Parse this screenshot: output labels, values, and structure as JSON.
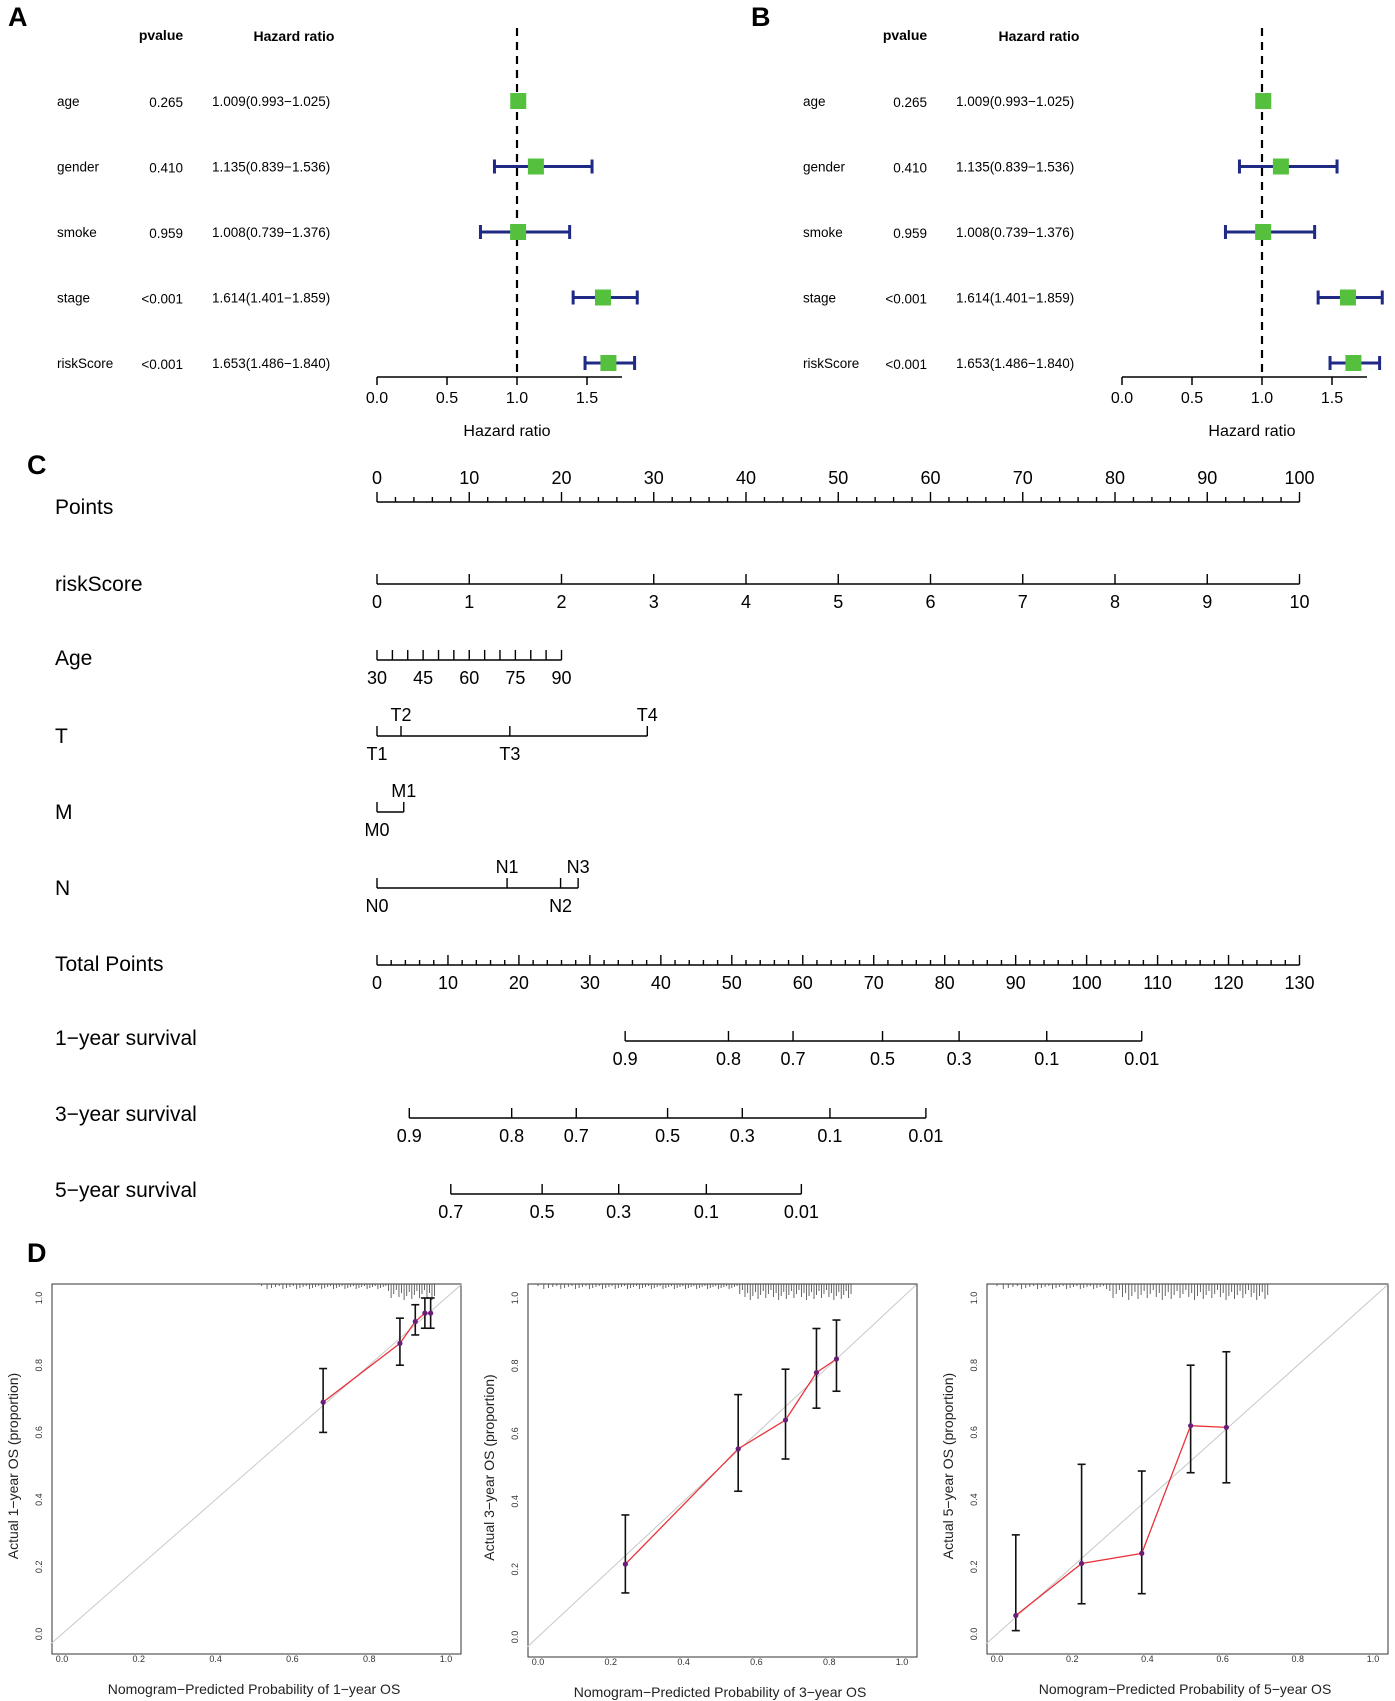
{
  "colors": {
    "forest_square": "#55c03d",
    "forest_ci": "#1f2a85",
    "calib_line": "#e8323a",
    "calib_point": "#6a1e78",
    "ideal_line": "#c8c8c8",
    "ink": "#000000"
  },
  "panels": {
    "A": "A",
    "B": "B",
    "C": "C",
    "D": "D"
  },
  "chart_data": [
    {
      "type": "forest",
      "panel": "A",
      "header": {
        "pvalue": "pvalue",
        "hr": "Hazard ratio"
      },
      "xlabel": "Hazard ratio",
      "xlim": [
        0,
        1.75
      ],
      "ticks": [
        0,
        0.5,
        1.0,
        1.5
      ],
      "tick_labels": [
        "0.0",
        "0.5",
        "1.0",
        "1.5"
      ],
      "reference": 1.0,
      "rows": [
        {
          "label": "age",
          "pvalue": "0.265",
          "hr_text": "1.009(0.993−1.025)",
          "hr": 1.009,
          "lo": 0.993,
          "hi": 1.025
        },
        {
          "label": "gender",
          "pvalue": "0.410",
          "hr_text": "1.135(0.839−1.536)",
          "hr": 1.135,
          "lo": 0.839,
          "hi": 1.536
        },
        {
          "label": "smoke",
          "pvalue": "0.959",
          "hr_text": "1.008(0.739−1.376)",
          "hr": 1.008,
          "lo": 0.739,
          "hi": 1.376
        },
        {
          "label": "stage",
          "pvalue": "<0.001",
          "hr_text": "1.614(1.401−1.859)",
          "hr": 1.614,
          "lo": 1.401,
          "hi": 1.859
        },
        {
          "label": "riskScore",
          "pvalue": "<0.001",
          "hr_text": "1.653(1.486−1.840)",
          "hr": 1.653,
          "lo": 1.486,
          "hi": 1.84
        }
      ]
    },
    {
      "type": "forest",
      "panel": "B",
      "header": {
        "pvalue": "pvalue",
        "hr": "Hazard ratio"
      },
      "xlabel": "Hazard ratio",
      "xlim": [
        0,
        1.75
      ],
      "ticks": [
        0,
        0.5,
        1.0,
        1.5
      ],
      "tick_labels": [
        "0.0",
        "0.5",
        "1.0",
        "1.5"
      ],
      "reference": 1.0,
      "rows": [
        {
          "label": "age",
          "pvalue": "0.265",
          "hr_text": "1.009(0.993−1.025)",
          "hr": 1.009,
          "lo": 0.993,
          "hi": 1.025
        },
        {
          "label": "gender",
          "pvalue": "0.410",
          "hr_text": "1.135(0.839−1.536)",
          "hr": 1.135,
          "lo": 0.839,
          "hi": 1.536
        },
        {
          "label": "smoke",
          "pvalue": "0.959",
          "hr_text": "1.008(0.739−1.376)",
          "hr": 1.008,
          "lo": 0.739,
          "hi": 1.376
        },
        {
          "label": "stage",
          "pvalue": "<0.001",
          "hr_text": "1.614(1.401−1.859)",
          "hr": 1.614,
          "lo": 1.401,
          "hi": 1.859
        },
        {
          "label": "riskScore",
          "pvalue": "<0.001",
          "hr_text": "1.653(1.486−1.840)",
          "hr": 1.653,
          "lo": 1.486,
          "hi": 1.84
        }
      ]
    },
    {
      "type": "nomogram",
      "panel": "C",
      "points_scale": {
        "min": 0,
        "max": 100
      },
      "rows": [
        {
          "label": "Points",
          "kind": "scale",
          "start": 0,
          "end": 100,
          "major": [
            0,
            10,
            20,
            30,
            40,
            50,
            60,
            70,
            80,
            90,
            100
          ],
          "minor_step": 2,
          "labels_side": "top"
        },
        {
          "label": "riskScore",
          "kind": "scale",
          "start": 0,
          "end": 100,
          "ticks": [
            {
              "t": "0",
              "p": 0
            },
            {
              "t": "1",
              "p": 10
            },
            {
              "t": "2",
              "p": 20
            },
            {
              "t": "3",
              "p": 30
            },
            {
              "t": "4",
              "p": 40
            },
            {
              "t": "5",
              "p": 50
            },
            {
              "t": "6",
              "p": 60
            },
            {
              "t": "7",
              "p": 70
            },
            {
              "t": "8",
              "p": 80
            },
            {
              "t": "9",
              "p": 90
            },
            {
              "t": "10",
              "p": 100
            }
          ]
        },
        {
          "label": "Age",
          "kind": "scale",
          "start": 0,
          "end": 20,
          "ticks": [
            {
              "t": "30",
              "p": 0
            },
            {
              "t": "",
              "p": 1.67
            },
            {
              "t": "",
              "p": 3.33
            },
            {
              "t": "45",
              "p": 5
            },
            {
              "t": "",
              "p": 6.67
            },
            {
              "t": "",
              "p": 8.33
            },
            {
              "t": "60",
              "p": 10
            },
            {
              "t": "",
              "p": 11.67
            },
            {
              "t": "",
              "p": 13.33
            },
            {
              "t": "75",
              "p": 15
            },
            {
              "t": "",
              "p": 16.67
            },
            {
              "t": "",
              "p": 18.33
            },
            {
              "t": "90",
              "p": 20
            }
          ]
        },
        {
          "label": "T",
          "kind": "categorical",
          "start": 0,
          "end": 29.3,
          "ticks": [
            {
              "t": "T1",
              "p": 0,
              "side": "bottom"
            },
            {
              "t": "T2",
              "p": 2.6,
              "side": "top"
            },
            {
              "t": "T3",
              "p": 14.4,
              "side": "bottom"
            },
            {
              "t": "T4",
              "p": 29.3,
              "side": "top"
            }
          ]
        },
        {
          "label": "M",
          "kind": "categorical",
          "start": 0,
          "end": 2.9,
          "ticks": [
            {
              "t": "M0",
              "p": 0,
              "side": "bottom"
            },
            {
              "t": "M1",
              "p": 2.9,
              "side": "top"
            }
          ]
        },
        {
          "label": "N",
          "kind": "categorical",
          "start": 0,
          "end": 21.8,
          "ticks": [
            {
              "t": "N0",
              "p": 0,
              "side": "bottom"
            },
            {
              "t": "N1",
              "p": 14.1,
              "side": "top"
            },
            {
              "t": "N2",
              "p": 19.9,
              "side": "bottom"
            },
            {
              "t": "N3",
              "p": 21.8,
              "side": "top"
            }
          ]
        },
        {
          "label": "Total Points",
          "kind": "scale",
          "start": 0,
          "end": 100,
          "total_range": [
            0,
            130
          ],
          "major": [
            0,
            10,
            20,
            30,
            40,
            50,
            60,
            70,
            80,
            90,
            100,
            110,
            120,
            130
          ],
          "minor_step": 2
        },
        {
          "label": "1−year survival",
          "kind": "scale",
          "start": 26.9,
          "end": 82.9,
          "ticks": [
            {
              "t": "0.9",
              "p": 26.9
            },
            {
              "t": "0.8",
              "p": 38.1
            },
            {
              "t": "0.7",
              "p": 45.1
            },
            {
              "t": "0.5",
              "p": 54.8
            },
            {
              "t": "0.3",
              "p": 63.1
            },
            {
              "t": "0.1",
              "p": 72.6
            },
            {
              "t": "0.01",
              "p": 82.9
            }
          ]
        },
        {
          "label": "3−year survival",
          "kind": "scale",
          "start": 3.5,
          "end": 59.5,
          "ticks": [
            {
              "t": "0.9",
              "p": 3.5
            },
            {
              "t": "0.8",
              "p": 14.6
            },
            {
              "t": "0.7",
              "p": 21.6
            },
            {
              "t": "0.5",
              "p": 31.5
            },
            {
              "t": "0.3",
              "p": 39.6
            },
            {
              "t": "0.1",
              "p": 49.1
            },
            {
              "t": "0.01",
              "p": 59.5
            }
          ]
        },
        {
          "label": "5−year survival",
          "kind": "scale",
          "start": 8.0,
          "end": 46.0,
          "ticks": [
            {
              "t": "0.7",
              "p": 8.0
            },
            {
              "t": "0.5",
              "p": 17.9
            },
            {
              "t": "0.3",
              "p": 26.2
            },
            {
              "t": "0.1",
              "p": 35.7
            },
            {
              "t": "0.01",
              "p": 46.0
            }
          ]
        }
      ]
    },
    {
      "type": "calibration",
      "panel": "D",
      "xlabel": "Nomogram−Predicted Probability of 1−year OS",
      "ylabel": "Actual 1−year OS (proportion)",
      "xlim": [
        0,
        1
      ],
      "ylim": [
        0,
        1
      ],
      "tick_labels": [
        "0.0",
        "0.2",
        "0.4",
        "0.6",
        "0.8",
        "1.0"
      ],
      "points": [
        {
          "x": 0.68,
          "y": 0.69,
          "lo": 0.6,
          "hi": 0.79
        },
        {
          "x": 0.88,
          "y": 0.865,
          "lo": 0.8,
          "hi": 0.94
        },
        {
          "x": 0.92,
          "y": 0.93,
          "lo": 0.89,
          "hi": 0.98
        },
        {
          "x": 0.945,
          "y": 0.955,
          "lo": 0.91,
          "hi": 1.0
        },
        {
          "x": 0.96,
          "y": 0.955,
          "lo": 0.91,
          "hi": 1.0
        }
      ],
      "rug": {
        "from": 0.52,
        "to": 0.97,
        "count": 60,
        "dense_from": 0.85
      }
    },
    {
      "type": "calibration",
      "panel": "D",
      "xlabel": "Nomogram−Predicted Probability of 3−year OS",
      "ylabel": "Actual 3−year OS (proportion)",
      "xlim": [
        0,
        1
      ],
      "ylim": [
        0,
        1
      ],
      "tick_labels": [
        "0.0",
        "0.2",
        "0.4",
        "0.6",
        "0.8",
        "1.0"
      ],
      "points": [
        {
          "x": 0.24,
          "y": 0.215,
          "lo": 0.13,
          "hi": 0.36
        },
        {
          "x": 0.55,
          "y": 0.555,
          "lo": 0.43,
          "hi": 0.715
        },
        {
          "x": 0.68,
          "y": 0.64,
          "lo": 0.525,
          "hi": 0.79
        },
        {
          "x": 0.765,
          "y": 0.78,
          "lo": 0.675,
          "hi": 0.91
        },
        {
          "x": 0.82,
          "y": 0.82,
          "lo": 0.725,
          "hi": 0.935
        }
      ],
      "rug": {
        "from": 0.0,
        "to": 0.86,
        "count": 110,
        "dense_from": 0.55
      }
    },
    {
      "type": "calibration",
      "panel": "D",
      "xlabel": "Nomogram−Predicted Probability of 5−year OS",
      "ylabel": "Actual 5−year OS (proportion)",
      "xlim": [
        0,
        1
      ],
      "ylim": [
        0,
        1
      ],
      "tick_labels": [
        "0.0",
        "0.2",
        "0.4",
        "0.6",
        "0.8",
        "1.0"
      ],
      "points": [
        {
          "x": 0.05,
          "y": 0.055,
          "lo": 0.01,
          "hi": 0.295
        },
        {
          "x": 0.225,
          "y": 0.21,
          "lo": 0.09,
          "hi": 0.505
        },
        {
          "x": 0.385,
          "y": 0.24,
          "lo": 0.12,
          "hi": 0.485
        },
        {
          "x": 0.515,
          "y": 0.62,
          "lo": 0.48,
          "hi": 0.8
        },
        {
          "x": 0.61,
          "y": 0.615,
          "lo": 0.45,
          "hi": 0.84
        }
      ],
      "rug": {
        "from": 0.0,
        "to": 0.72,
        "count": 85,
        "dense_from": 0.3
      }
    }
  ]
}
